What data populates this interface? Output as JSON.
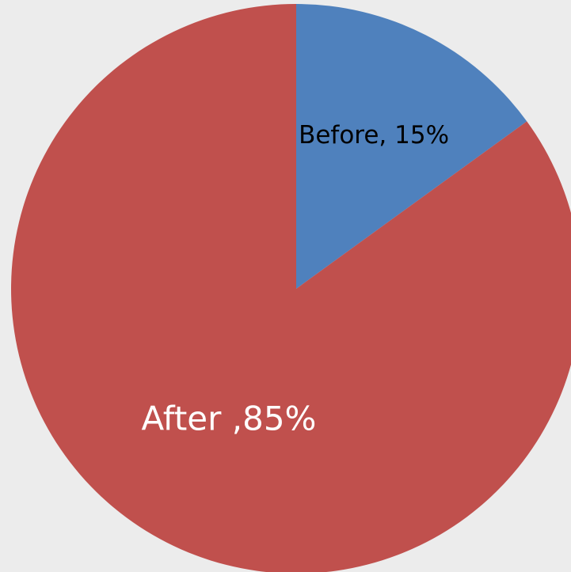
{
  "chart_data": {
    "type": "pie",
    "categories": [
      "Before",
      "After"
    ],
    "values": [
      15,
      85
    ],
    "colors": [
      "#4f81bd",
      "#c0504d"
    ],
    "data_labels": [
      "Before, 15%",
      "After ,85%"
    ],
    "label_colors": [
      "#000000",
      "#ffffff"
    ],
    "start_angle_deg": 0,
    "direction": "clockwise",
    "title": "",
    "legend": "none"
  },
  "background_color": "#ececec"
}
